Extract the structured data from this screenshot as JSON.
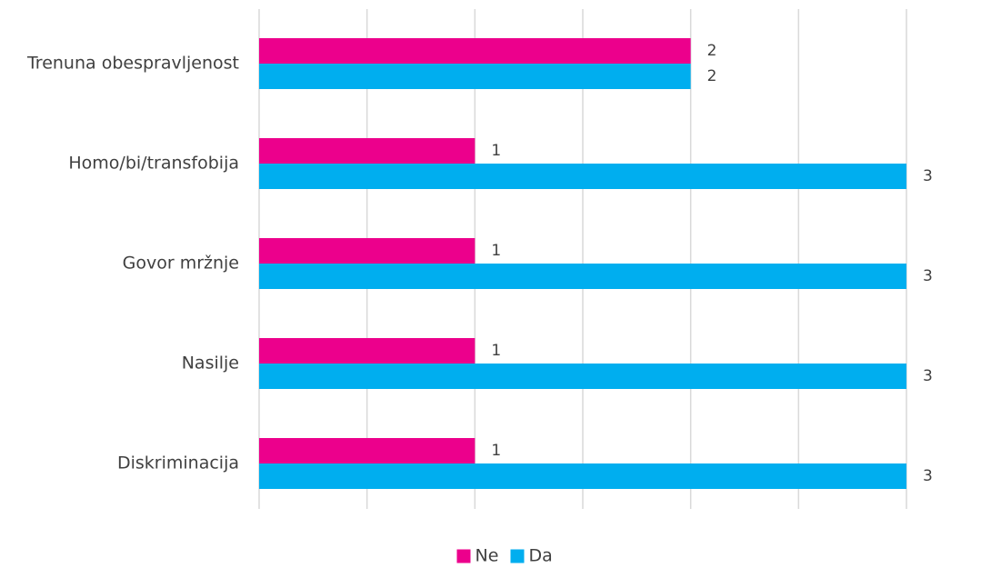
{
  "chart_data": {
    "type": "bar",
    "orientation": "horizontal",
    "categories": [
      "Trenuna obespravljenost",
      "Homo/bi/transfobija",
      "Govor mržnje",
      "Nasilje",
      "Diskriminacija"
    ],
    "series": [
      {
        "name": "Ne",
        "values": [
          2,
          1,
          1,
          1,
          1
        ],
        "color": "#ec008c"
      },
      {
        "name": "Da",
        "values": [
          2,
          3,
          3,
          3,
          3
        ],
        "color": "#00aeef"
      }
    ],
    "xlim": [
      0,
      3
    ],
    "grid_step": 0.5,
    "grid": true,
    "axis_tick_labels_shown": false,
    "legend": "bottom",
    "data_labels": true
  }
}
